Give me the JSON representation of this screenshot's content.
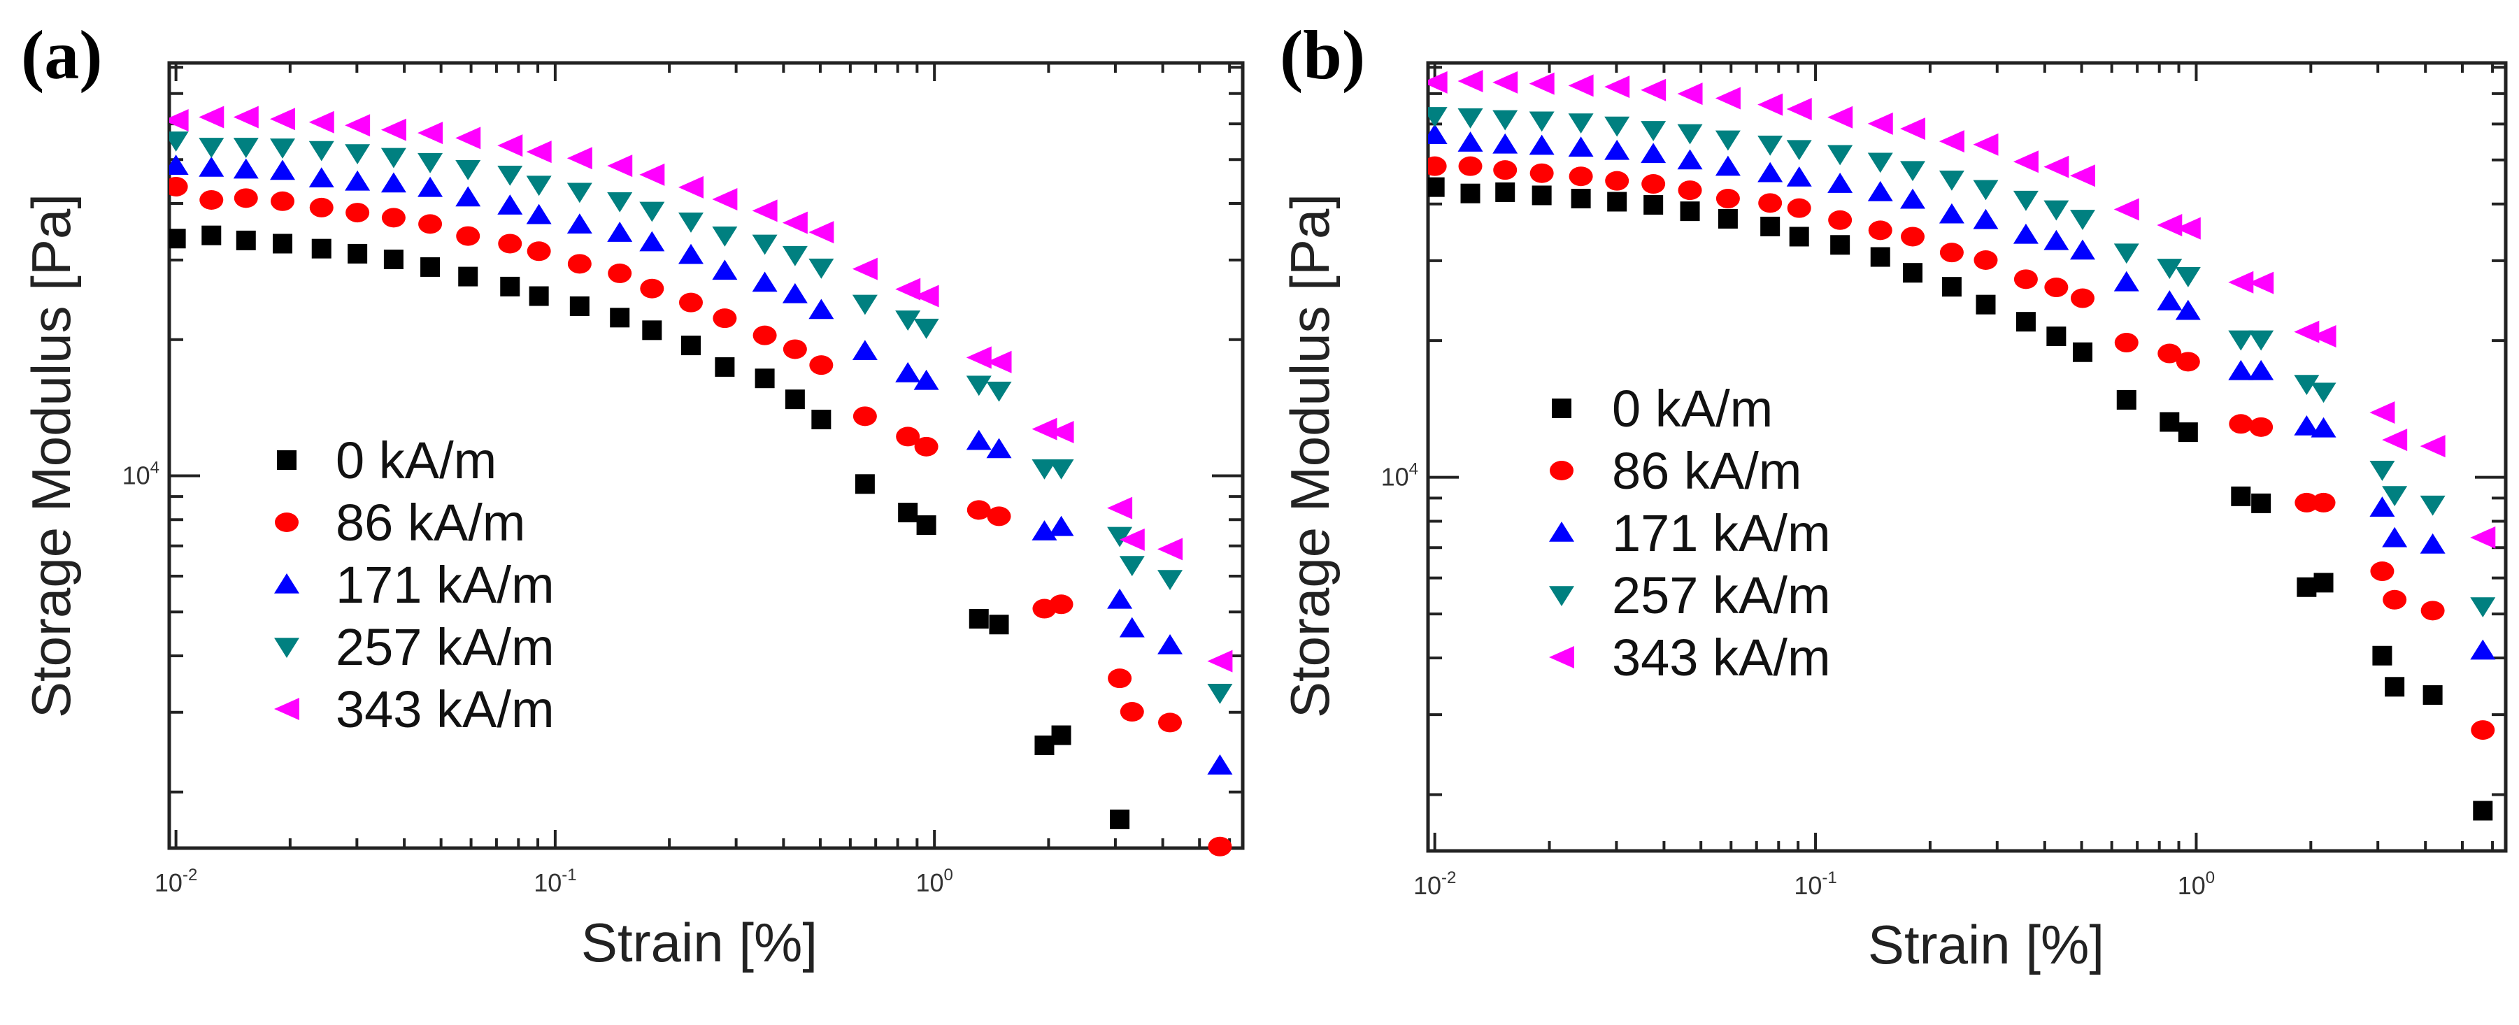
{
  "chart_data": [
    {
      "panel_label": "(a)",
      "type": "scatter",
      "xscale": "log",
      "yscale": "log",
      "xlabel": "Strain [%]",
      "ylabel": "Storage Modulus [Pa]",
      "xlim": [
        0.0096,
        6.5
      ],
      "ylim": [
        1503,
        81800
      ],
      "grid": false,
      "legend_position": "center-left",
      "x_ticks": [
        {
          "value": 0.01,
          "base": "10",
          "exp": "-2"
        },
        {
          "value": 0.1,
          "base": "10",
          "exp": "-1"
        },
        {
          "value": 1,
          "base": "10",
          "exp": "0"
        }
      ],
      "y_ticks": [
        {
          "value": 10000,
          "base": "10",
          "exp": "4"
        }
      ],
      "x": [
        0.01,
        0.0124,
        0.0153,
        0.0191,
        0.0242,
        0.0301,
        0.0375,
        0.0468,
        0.0589,
        0.076,
        0.0906,
        0.116,
        0.148,
        0.18,
        0.228,
        0.28,
        0.357,
        0.429,
        0.503,
        0.656,
        0.851,
        0.952,
        1.31,
        1.48,
        1.95,
        2.16,
        3.08,
        3.32,
        4.18,
        5.66
      ],
      "series": [
        {
          "name": "0 kA/m",
          "color": "#000000",
          "marker": "square",
          "values": [
            33450,
            34000,
            33140,
            32600,
            31780,
            30970,
            30090,
            28940,
            27570,
            26200,
            24960,
            23710,
            22370,
            20980,
            19420,
            17400,
            16420,
            14760,
            13320,
            9590,
            8295,
            7780,
            4830,
            4690,
            2536,
            2670,
            1740,
            null,
            null,
            null
          ]
        },
        {
          "name": "86 kA/m",
          "color": "#ff0000",
          "marker": "circle",
          "values": [
            43570,
            40720,
            41110,
            40460,
            39170,
            38180,
            37210,
            36030,
            33890,
            32600,
            31370,
            29420,
            28030,
            25940,
            24160,
            22300,
            20440,
            19050,
            17570,
            13540,
            12210,
            11600,
            8404,
            8138,
            5085,
            5200,
            3567,
            3008,
            2848,
            1515
          ]
        },
        {
          "name": "171 kA/m",
          "color": "#0000ff",
          "marker": "triangle-up",
          "values": [
            48450,
            47980,
            47520,
            47210,
            45430,
            44700,
            44280,
            43290,
            41240,
            39560,
            37700,
            35920,
            34440,
            32820,
            30770,
            28390,
            26710,
            25200,
            23250,
            18860,
            16850,
            16210,
            11940,
            11450,
            7533,
            7705,
            5320,
            4601,
            4219,
            2288
          ]
        },
        {
          "name": "257 kA/m",
          "color": "#008080",
          "marker": "triangle-down",
          "values": [
            55120,
            53370,
            53370,
            53200,
            52520,
            51680,
            50690,
            49400,
            47660,
            46320,
            44000,
            42460,
            40460,
            38550,
            36490,
            33990,
            32600,
            30770,
            28860,
            24010,
            22160,
            21250,
            15900,
            15430,
            10390,
            10390,
            7365,
            6351,
            5916,
            3314
          ]
        },
        {
          "name": "343 kA/m",
          "color": "#ff00ff",
          "marker": "triangle-left",
          "values": [
            61090,
            62080,
            62080,
            61490,
            60510,
            59550,
            58210,
            57280,
            55830,
            53720,
            52020,
            50370,
            48450,
            46310,
            43430,
            40860,
            38550,
            36260,
            34550,
            28670,
            25860,
            24960,
            18260,
            17850,
            12690,
            12490,
            8486,
            7225,
            6885,
            3892
          ]
        }
      ]
    },
    {
      "panel_label": "(b)",
      "type": "scatter",
      "xscale": "log",
      "yscale": "log",
      "xlabel": "Strain [%]",
      "ylabel": "Storage Modulus [Pa]",
      "xlim": [
        0.0096,
        6.5
      ],
      "ylim": [
        1503,
        81800
      ],
      "grid": false,
      "legend_position": "center-left",
      "x_ticks": [
        {
          "value": 0.01,
          "base": "10",
          "exp": "-2"
        },
        {
          "value": 0.1,
          "base": "10",
          "exp": "-1"
        },
        {
          "value": 1,
          "base": "10",
          "exp": "0"
        }
      ],
      "y_ticks": [
        {
          "value": 10000,
          "base": "10",
          "exp": "4"
        }
      ],
      "x": [
        0.01,
        0.0124,
        0.0153,
        0.0191,
        0.0242,
        0.0301,
        0.0375,
        0.0468,
        0.0589,
        0.076,
        0.0906,
        0.116,
        0.148,
        0.18,
        0.228,
        0.28,
        0.357,
        0.429,
        0.503,
        0.656,
        0.851,
        0.952,
        1.31,
        1.48,
        1.95,
        2.16,
        3.08,
        3.32,
        4.18,
        5.66
      ],
      "series": [
        {
          "name": "0 kA/m",
          "color": "#000000",
          "marker": "square",
          "values": [
            43570,
            42190,
            42460,
            41780,
            41110,
            40460,
            39810,
            38550,
            37100,
            35680,
            33890,
            32500,
            30570,
            28210,
            26280,
            24010,
            22010,
            20440,
            18860,
            14810,
            13240,
            12570,
            9080,
            8763,
            5728,
            5859,
            4046,
            3455,
            3314,
            1843
          ]
        },
        {
          "name": "86 kA/m",
          "color": "#ff0000",
          "marker": "circle",
          "values": [
            48450,
            48450,
            47520,
            46760,
            46020,
            44980,
            44280,
            42880,
            41110,
            40200,
            39170,
            36860,
            35000,
            33890,
            31270,
            30090,
            27310,
            26200,
            24800,
            19800,
            18740,
            17970,
            13110,
            12900,
            8792,
            8792,
            6209,
            5373,
            5085,
            2775
          ]
        },
        {
          "name": "171 kA/m",
          "color": "#0000ff",
          "marker": "triangle-up",
          "values": [
            56740,
            54580,
            54060,
            53720,
            53200,
            52350,
            51520,
            49880,
            48290,
            46760,
            45730,
            44280,
            42460,
            40860,
            37930,
            36860,
            34210,
            33140,
            31570,
            26880,
            24400,
            23250,
            17130,
            17130,
            12940,
            12810,
            8569,
            7341,
            7107,
            4150
          ]
        },
        {
          "name": "257 kA/m",
          "color": "#008080",
          "marker": "triangle-down",
          "values": [
            62490,
            62080,
            61490,
            61090,
            60510,
            59550,
            58210,
            57280,
            55480,
            54060,
            52860,
            51520,
            49560,
            47520,
            45280,
            43150,
            40860,
            38920,
            37100,
            31270,
            28940,
            27750,
            20120,
            20120,
            16060,
            15440,
            10390,
            9139,
            8708,
            5200
          ]
        },
        {
          "name": "343 kA/m",
          "color": "#ff00ff",
          "marker": "triangle-left",
          "values": [
            74110,
            74590,
            74110,
            73630,
            72930,
            72460,
            71300,
            69940,
            68390,
            66220,
            64740,
            62080,
            60120,
            58590,
            54950,
            54060,
            49560,
            48290,
            46170,
            38920,
            35920,
            35340,
            26880,
            26800,
            20910,
            20440,
            13890,
            12090,
            11710,
            7365
          ]
        }
      ]
    }
  ]
}
